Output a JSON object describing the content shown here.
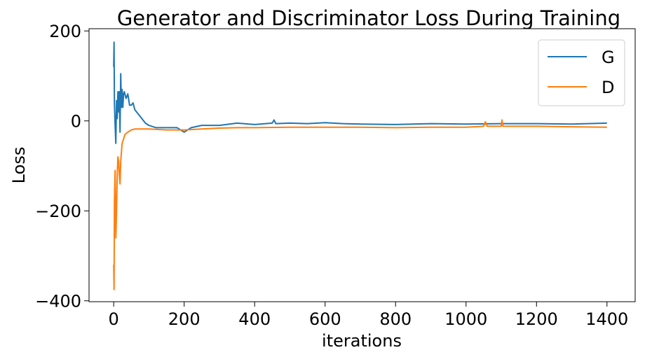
{
  "chart_data": {
    "type": "line",
    "title": "Generator and Discriminator Loss During Training",
    "xlabel": "iterations",
    "ylabel": "Loss",
    "xlim": [
      -70,
      1480
    ],
    "ylim": [
      -402,
      205
    ],
    "x_ticks": [
      0,
      200,
      400,
      600,
      800,
      1000,
      1200,
      1400
    ],
    "x_tick_labels": [
      "0",
      "200",
      "400",
      "600",
      "800",
      "1000",
      "1200",
      "1400"
    ],
    "y_ticks": [
      200,
      0,
      -200,
      -400
    ],
    "y_tick_labels": [
      "200",
      "0",
      "−200",
      "−400"
    ],
    "grid": false,
    "legend_position": "upper right",
    "series": [
      {
        "name": "G",
        "color": "#1f77b4",
        "x": [
          0,
          1,
          2,
          4,
          6,
          8,
          10,
          12,
          14,
          16,
          18,
          20,
          22,
          24,
          26,
          28,
          30,
          35,
          40,
          45,
          50,
          55,
          60,
          70,
          80,
          90,
          100,
          120,
          150,
          180,
          200,
          220,
          250,
          300,
          350,
          400,
          450,
          455,
          460,
          500,
          550,
          600,
          650,
          700,
          800,
          900,
          1000,
          1100,
          1200,
          1300,
          1400
        ],
        "y": [
          120,
          175,
          40,
          -10,
          -50,
          45,
          5,
          65,
          20,
          65,
          -25,
          105,
          30,
          70,
          30,
          60,
          65,
          50,
          60,
          35,
          35,
          40,
          25,
          15,
          5,
          -5,
          -10,
          -15,
          -15,
          -15,
          -25,
          -15,
          -10,
          -10,
          -5,
          -8,
          -5,
          2,
          -6,
          -5,
          -6,
          -4,
          -6,
          -7,
          -8,
          -6,
          -7,
          -6,
          -6,
          -7,
          -5
        ]
      },
      {
        "name": "D",
        "color": "#ff7f0e",
        "x": [
          0,
          1,
          2,
          4,
          6,
          8,
          10,
          12,
          14,
          16,
          18,
          20,
          24,
          28,
          32,
          40,
          50,
          60,
          80,
          100,
          150,
          200,
          250,
          300,
          350,
          400,
          500,
          600,
          700,
          800,
          900,
          1000,
          1050,
          1055,
          1060,
          1100,
          1102,
          1105,
          1200,
          1300,
          1400
        ],
        "y": [
          -320,
          -375,
          -180,
          -110,
          -260,
          -200,
          -120,
          -80,
          -90,
          -120,
          -140,
          -90,
          -50,
          -40,
          -30,
          -25,
          -20,
          -18,
          -18,
          -18,
          -20,
          -20,
          -18,
          -16,
          -15,
          -15,
          -14,
          -14,
          -14,
          -15,
          -14,
          -14,
          -12,
          -2,
          -12,
          -12,
          2,
          -12,
          -12,
          -13,
          -14
        ]
      }
    ]
  }
}
